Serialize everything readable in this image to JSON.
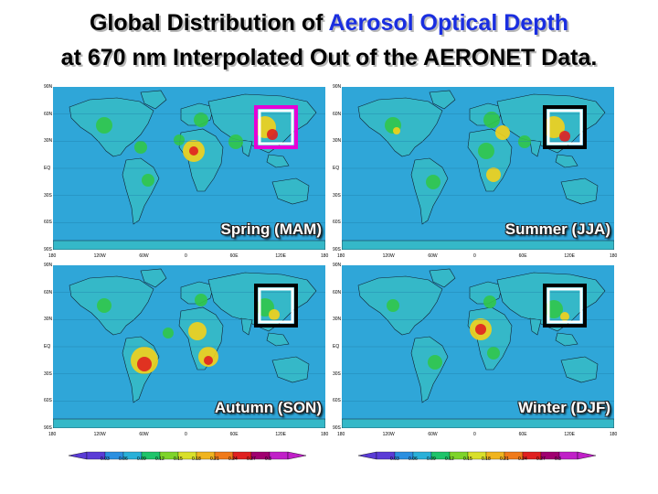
{
  "title": {
    "line1_prefix": "Global Distribution of ",
    "line1_highlight": "Aerosol Optical Depth",
    "line2": "at 670 nm Interpolated Out of the AERONET Data."
  },
  "panels": [
    {
      "season": "Spring (MAM)",
      "box_color": "#e600d6"
    },
    {
      "season": "Summer (JJA)",
      "box_color": "#000000"
    },
    {
      "season": "Autumn (SON)",
      "box_color": "#000000"
    },
    {
      "season": "Winter (DJF)",
      "box_color": "#000000"
    }
  ],
  "axes": {
    "lat_labels": [
      "90N",
      "60N",
      "30N",
      "EQ",
      "30S",
      "60S",
      "90S"
    ],
    "lon_labels": [
      "180",
      "120W",
      "60W",
      "0",
      "60E",
      "120E",
      "180"
    ]
  },
  "colorbar": {
    "values": [
      "0.03",
      "0.06",
      "0.09",
      "0.12",
      "0.15",
      "0.18",
      "0.21",
      "0.24",
      "0.27",
      "0.3"
    ],
    "colors": [
      "#5a3bd6",
      "#2b8fe0",
      "#2ab0d8",
      "#1fc46a",
      "#7ed42a",
      "#d9e02a",
      "#f0b41f",
      "#f07a1a",
      "#e02020",
      "#a00070",
      "#c020c8"
    ]
  },
  "colors": {
    "ocean": "#2fa6d8",
    "land_low": "#35b8c8",
    "aerosol_mid": "#31c64a",
    "aerosol_high": "#f4d21a",
    "aerosol_peak": "#e02020"
  }
}
